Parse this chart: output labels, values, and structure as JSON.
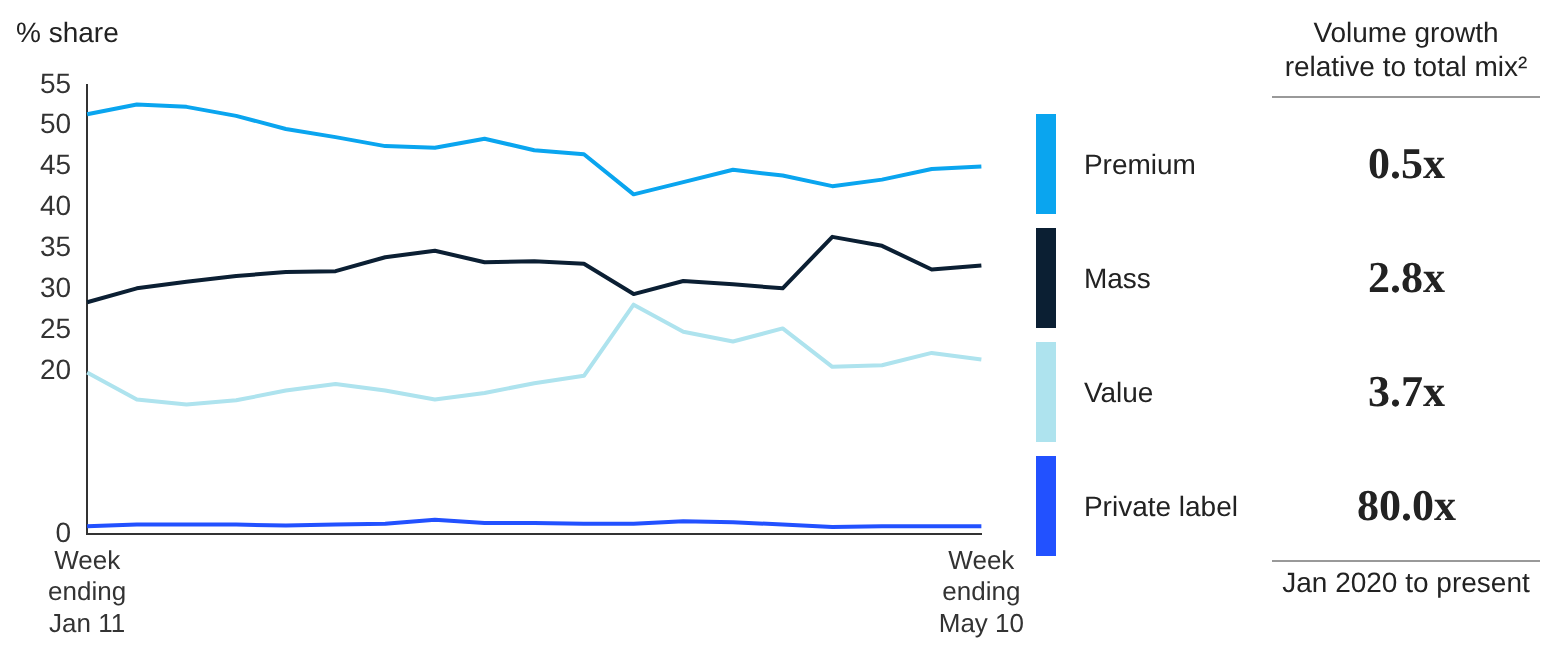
{
  "chart_data": {
    "type": "line",
    "ylabel": "% share",
    "categories": [
      "Week ending Jan 11",
      null,
      null,
      null,
      null,
      null,
      null,
      null,
      null,
      null,
      null,
      null,
      null,
      null,
      null,
      null,
      null,
      null,
      "Week ending May 10"
    ],
    "series": [
      {
        "name": "Premium",
        "color": "#0aa5ef",
        "values": [
          51.4,
          52.6,
          52.3,
          51.2,
          49.6,
          48.6,
          47.5,
          47.3,
          48.4,
          47.0,
          46.5,
          41.6,
          43.1,
          44.6,
          43.9,
          42.6,
          43.4,
          44.7,
          45.0
        ]
      },
      {
        "name": "Mass",
        "color": "#0b1f33",
        "values": [
          28.4,
          30.1,
          30.9,
          31.6,
          32.1,
          32.2,
          33.9,
          34.7,
          33.3,
          33.4,
          33.1,
          29.4,
          31.0,
          30.6,
          30.1,
          36.4,
          35.3,
          32.4,
          32.9
        ]
      },
      {
        "name": "Value",
        "color": "#aee3ee",
        "values": [
          19.8,
          16.5,
          15.9,
          16.4,
          17.6,
          18.4,
          17.6,
          16.5,
          17.3,
          18.5,
          19.4,
          28.1,
          24.8,
          23.6,
          25.2,
          20.5,
          20.7,
          22.2,
          21.4
        ]
      },
      {
        "name": "Private label",
        "color": "#2251ff",
        "values": [
          1.0,
          1.2,
          1.2,
          1.2,
          1.1,
          1.2,
          1.3,
          1.8,
          1.4,
          1.4,
          1.3,
          1.3,
          1.6,
          1.5,
          1.2,
          0.9,
          1.0,
          1.0,
          1.0
        ]
      }
    ],
    "ylim": [
      0,
      55
    ],
    "yticks": [
      0,
      20,
      25,
      30,
      35,
      40,
      45,
      50,
      55
    ],
    "grid": false,
    "legend": "right",
    "marker": "none",
    "line_style": "solid",
    "annotations": [
      "Volume growth relative to total mix²",
      "0.5x",
      "2.8x",
      "3.7x",
      "80.0x",
      "Jan 2020 to present"
    ]
  }
}
